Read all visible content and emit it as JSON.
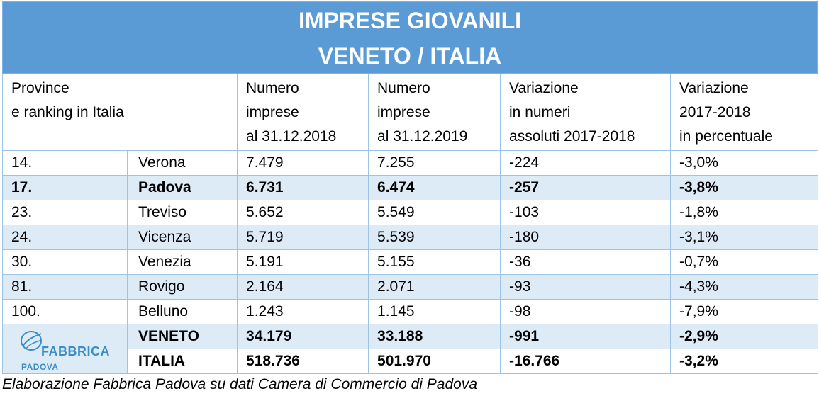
{
  "title": {
    "line1": "IMPRESE GIOVANILI",
    "line2": "VENETO / ITALIA"
  },
  "header": {
    "col1": [
      "Province",
      "e ranking in Italia"
    ],
    "col2": [
      "Numero",
      "imprese",
      "al 31.12.2018"
    ],
    "col3": [
      "Numero",
      "imprese",
      "al 31.12.2019"
    ],
    "col4": [
      "Variazione",
      "in numeri",
      "assoluti 2017-2018"
    ],
    "col5": [
      "Variazione",
      "2017-2018",
      "in percentuale"
    ]
  },
  "rows": [
    {
      "rank": "14.",
      "name": "Verona",
      "v2018": "7.479",
      "v2019": "7.255",
      "diff": "-224",
      "pct": "-3,0%"
    },
    {
      "rank": "17.",
      "name": "Padova",
      "v2018": "6.731",
      "v2019": "6.474",
      "diff": "-257",
      "pct": "-3,8%"
    },
    {
      "rank": "23.",
      "name": "Treviso",
      "v2018": "5.652",
      "v2019": "5.549",
      "diff": "-103",
      "pct": "-1,8%"
    },
    {
      "rank": "24.",
      "name": "Vicenza",
      "v2018": "5.719",
      "v2019": "5.539",
      "diff": "-180",
      "pct": "-3,1%"
    },
    {
      "rank": "30.",
      "name": "Venezia",
      "v2018": "5.191",
      "v2019": "5.155",
      "diff": "-36",
      "pct": "-0,7%"
    },
    {
      "rank": "81.",
      "name": "Rovigo",
      "v2018": "2.164",
      "v2019": "2.071",
      "diff": "-93",
      "pct": "-4,3%"
    },
    {
      "rank": "100.",
      "name": "Belluno",
      "v2018": "1.243",
      "v2019": "1.145",
      "diff": "-98",
      "pct": "-7,9%"
    }
  ],
  "totals": [
    {
      "name": "VENETO",
      "v2018": "34.179",
      "v2019": "33.188",
      "diff": "-991",
      "pct": "-2,9%"
    },
    {
      "name": "ITALIA",
      "v2018": "518.736",
      "v2019": "501.970",
      "diff": "-16.766",
      "pct": "-3,2%"
    }
  ],
  "logo": {
    "brand": "FABBRICA",
    "city": "PADOVA"
  },
  "footnote": "Elaborazione Fabbrica Padova su dati Camera di Commercio di Padova",
  "colors": {
    "title_bg": "#5b9bd5",
    "alt_row": "#ddebf7",
    "border": "#9dc3e6",
    "logo": "#3a8ec6"
  }
}
